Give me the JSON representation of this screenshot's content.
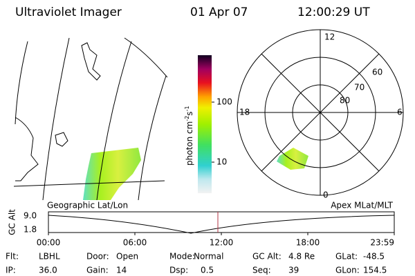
{
  "header": {
    "title": "Ultraviolet Imager",
    "date": "01 Apr 07",
    "time": "12:00:29 UT"
  },
  "colorbar": {
    "unit": {
      "base": "photon cm",
      "exp1": "-2",
      "mid": "s",
      "exp2": "-1"
    },
    "ticks": [
      "100",
      "10"
    ]
  },
  "polar": {
    "mlt_labels": {
      "top": "12",
      "left": "18",
      "right": "6",
      "bottom": "0"
    },
    "lat_labels": [
      "60",
      "70",
      "80"
    ]
  },
  "panel_labels": {
    "left": "Geographic Lat/Lon",
    "right": "Apex MLat/MLT"
  },
  "timeline": {
    "axis_label": "GC Alt",
    "ticks": [
      "9.0",
      "1.8"
    ],
    "times": [
      "00:00",
      "06:00",
      "12:00",
      "18:00",
      "23:59"
    ]
  },
  "footer": {
    "rows": [
      [
        {
          "label": "Flt:",
          "value": "LBHL"
        },
        {
          "label": "Door:",
          "value": "Open"
        },
        {
          "label": "Mode:",
          "value": "Normal"
        },
        {
          "label": "GC Alt:",
          "value": "4.8 Re"
        },
        {
          "label": "GLat:",
          "value": "-48.5"
        }
      ],
      [
        {
          "label": "IP:",
          "value": "36.0"
        },
        {
          "label": "Gain:",
          "value": "14"
        },
        {
          "label": "Dsp:",
          "value": "0.5"
        },
        {
          "label": "Seq:",
          "value": "39"
        },
        {
          "label": "GLon:",
          "value": "154.5"
        }
      ]
    ]
  }
}
